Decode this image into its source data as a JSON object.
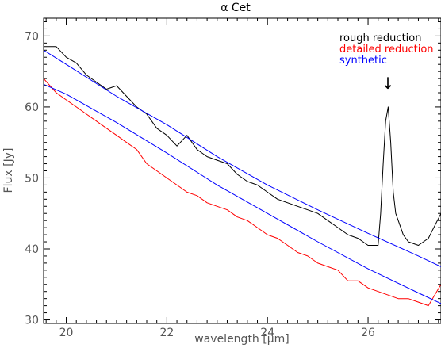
{
  "chart_data": {
    "type": "line",
    "title": "α Cet",
    "xlabel": "wavelength [μm]",
    "ylabel": "Flux [Jy]",
    "xlim": [
      19.55,
      27.45
    ],
    "ylim": [
      29.5,
      72.5
    ],
    "grid": false,
    "legend_position": "top-right",
    "x_ticks": [
      20,
      22,
      24,
      26
    ],
    "y_ticks": [
      30,
      40,
      50,
      60,
      70
    ],
    "annotation": "↓",
    "series": [
      {
        "name": "rough reduction",
        "color": "#000000",
        "x": [
          19.55,
          19.8,
          20.0,
          20.2,
          20.4,
          20.6,
          20.8,
          21.0,
          21.2,
          21.4,
          21.6,
          21.8,
          22.0,
          22.2,
          22.4,
          22.6,
          22.8,
          23.0,
          23.2,
          23.4,
          23.6,
          23.8,
          24.0,
          24.2,
          24.4,
          24.6,
          24.8,
          25.0,
          25.2,
          25.4,
          25.6,
          25.8,
          26.0,
          26.2,
          26.25,
          26.3,
          26.35,
          26.4,
          26.45,
          26.5,
          26.55,
          26.6,
          26.7,
          26.8,
          27.0,
          27.2,
          27.45
        ],
        "y": [
          68.5,
          68.5,
          67.0,
          66.2,
          64.5,
          63.5,
          62.5,
          63.0,
          61.5,
          60.0,
          59.0,
          57.0,
          56.0,
          54.5,
          56.0,
          54.0,
          53.0,
          52.5,
          52.0,
          50.5,
          49.5,
          49.0,
          48.0,
          47.0,
          46.5,
          46.0,
          45.5,
          45.0,
          44.0,
          43.0,
          42.0,
          41.5,
          40.5,
          40.5,
          45.0,
          52.0,
          58.0,
          60.0,
          55.0,
          48.0,
          45.0,
          44.0,
          42.0,
          41.0,
          40.5,
          41.5,
          45.0
        ]
      },
      {
        "name": "detailed reduction",
        "color": "#ff0000",
        "x": [
          19.55,
          19.8,
          20.0,
          20.2,
          20.4,
          20.6,
          20.8,
          21.0,
          21.2,
          21.4,
          21.6,
          21.8,
          22.0,
          22.2,
          22.4,
          22.6,
          22.8,
          23.0,
          23.2,
          23.4,
          23.6,
          23.8,
          24.0,
          24.2,
          24.4,
          24.6,
          24.8,
          25.0,
          25.2,
          25.4,
          25.6,
          25.8,
          26.0,
          26.2,
          26.4,
          26.6,
          26.8,
          27.0,
          27.2,
          27.45
        ],
        "y": [
          64.0,
          62.0,
          61.0,
          60.0,
          59.0,
          58.0,
          57.0,
          56.0,
          55.0,
          54.0,
          52.0,
          51.0,
          50.0,
          49.0,
          48.0,
          47.5,
          46.5,
          46.0,
          45.5,
          44.5,
          44.0,
          43.0,
          42.0,
          41.5,
          40.5,
          39.5,
          39.0,
          38.0,
          37.5,
          37.0,
          35.5,
          35.5,
          34.5,
          34.0,
          33.5,
          33.0,
          33.0,
          32.5,
          32.0,
          35.0
        ]
      },
      {
        "name": "synthetic",
        "color": "#0000ff",
        "x": [
          19.55,
          20.0,
          21.0,
          22.0,
          23.0,
          24.0,
          25.0,
          26.0,
          27.0,
          27.45
        ],
        "y": [
          68.0,
          66.0,
          61.5,
          57.5,
          53.0,
          49.0,
          45.5,
          42.2,
          39.0,
          37.5
        ]
      },
      {
        "name": "",
        "color": "#0000ff",
        "x": [
          19.55,
          20.0,
          21.0,
          22.0,
          23.0,
          24.0,
          25.0,
          26.0,
          27.0,
          27.45
        ],
        "y": [
          63.2,
          61.8,
          57.8,
          53.5,
          49.0,
          45.0,
          41.0,
          37.2,
          33.8,
          32.3
        ]
      }
    ]
  }
}
